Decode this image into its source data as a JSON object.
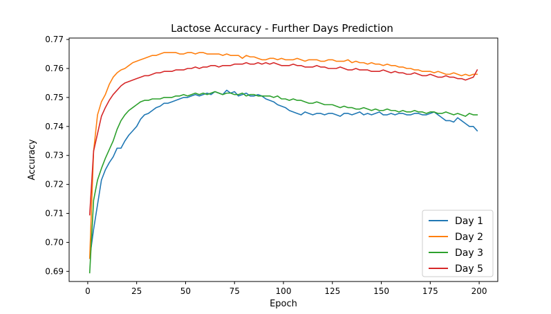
{
  "chart_data": {
    "type": "line",
    "title": "Lactose Accuracy - Further Days Prediction",
    "xlabel": "Epoch",
    "ylabel": "Accuracy",
    "xlim": [
      -9.5,
      209.5
    ],
    "ylim": [
      0.6865,
      0.7705
    ],
    "xticks": [
      0,
      25,
      50,
      75,
      100,
      125,
      150,
      175,
      200
    ],
    "yticks": [
      0.69,
      0.7,
      0.71,
      0.72,
      0.73,
      0.74,
      0.75,
      0.76,
      0.77
    ],
    "ytick_labels": [
      "0.69",
      "0.70",
      "0.71",
      "0.72",
      "0.73",
      "0.74",
      "0.75",
      "0.76",
      "0.77"
    ],
    "grid": false,
    "legend_position": "lower-right",
    "x_start": 1,
    "x_step": 2,
    "series": [
      {
        "name": "Day 1",
        "color": "#1f77b4",
        "values": [
          0.6945,
          0.7045,
          0.713,
          0.7215,
          0.725,
          0.7275,
          0.7295,
          0.7325,
          0.7325,
          0.735,
          0.737,
          0.7385,
          0.74,
          0.7425,
          0.744,
          0.7445,
          0.7455,
          0.7465,
          0.747,
          0.748,
          0.748,
          0.7485,
          0.749,
          0.7495,
          0.75,
          0.75,
          0.7505,
          0.751,
          0.7505,
          0.751,
          0.7515,
          0.751,
          0.752,
          0.7515,
          0.751,
          0.7525,
          0.7515,
          0.752,
          0.7505,
          0.751,
          0.7515,
          0.7505,
          0.7505,
          0.751,
          0.7505,
          0.7495,
          0.749,
          0.7485,
          0.7475,
          0.747,
          0.7465,
          0.7455,
          0.745,
          0.7445,
          0.744,
          0.745,
          0.7445,
          0.744,
          0.7445,
          0.7445,
          0.744,
          0.7445,
          0.7445,
          0.744,
          0.7435,
          0.7445,
          0.7445,
          0.744,
          0.7445,
          0.745,
          0.744,
          0.7445,
          0.744,
          0.7445,
          0.745,
          0.744,
          0.744,
          0.7445,
          0.744,
          0.7445,
          0.7445,
          0.744,
          0.744,
          0.7445,
          0.7445,
          0.744,
          0.744,
          0.7445,
          0.745,
          0.744,
          0.743,
          0.742,
          0.742,
          0.7415,
          0.743,
          0.742,
          0.741,
          0.74,
          0.74,
          0.7385
        ]
      },
      {
        "name": "Day 2",
        "color": "#ff7f0e",
        "values": [
          0.6945,
          0.7315,
          0.744,
          0.7485,
          0.751,
          0.7545,
          0.757,
          0.7585,
          0.7595,
          0.76,
          0.761,
          0.762,
          0.7625,
          0.763,
          0.7635,
          0.764,
          0.7645,
          0.7645,
          0.765,
          0.7655,
          0.7655,
          0.7655,
          0.7655,
          0.765,
          0.765,
          0.7655,
          0.7655,
          0.765,
          0.7655,
          0.7655,
          0.765,
          0.765,
          0.765,
          0.765,
          0.7645,
          0.765,
          0.7645,
          0.7645,
          0.7645,
          0.7635,
          0.7645,
          0.764,
          0.764,
          0.7635,
          0.763,
          0.763,
          0.7635,
          0.7635,
          0.763,
          0.7635,
          0.763,
          0.763,
          0.763,
          0.7635,
          0.763,
          0.7625,
          0.763,
          0.763,
          0.763,
          0.7625,
          0.7625,
          0.763,
          0.763,
          0.7625,
          0.7625,
          0.7625,
          0.763,
          0.762,
          0.7625,
          0.762,
          0.762,
          0.7615,
          0.762,
          0.7615,
          0.7615,
          0.761,
          0.7615,
          0.761,
          0.761,
          0.7605,
          0.7605,
          0.76,
          0.76,
          0.7595,
          0.7595,
          0.759,
          0.759,
          0.759,
          0.7585,
          0.759,
          0.7585,
          0.758,
          0.758,
          0.7585,
          0.758,
          0.7575,
          0.758,
          0.7575,
          0.758,
          0.758
        ]
      },
      {
        "name": "Day 3",
        "color": "#2ca02c",
        "values": [
          0.6895,
          0.7145,
          0.7215,
          0.7255,
          0.729,
          0.732,
          0.735,
          0.739,
          0.742,
          0.744,
          0.7455,
          0.7465,
          0.7475,
          0.7485,
          0.749,
          0.749,
          0.7495,
          0.7495,
          0.7495,
          0.75,
          0.75,
          0.75,
          0.7505,
          0.7505,
          0.751,
          0.7505,
          0.751,
          0.7515,
          0.751,
          0.7515,
          0.751,
          0.7515,
          0.752,
          0.7515,
          0.751,
          0.7515,
          0.7515,
          0.751,
          0.751,
          0.7515,
          0.7505,
          0.751,
          0.751,
          0.7505,
          0.7505,
          0.7505,
          0.7505,
          0.75,
          0.7505,
          0.7495,
          0.7495,
          0.749,
          0.7495,
          0.749,
          0.749,
          0.7485,
          0.748,
          0.748,
          0.7485,
          0.748,
          0.7475,
          0.7475,
          0.7475,
          0.747,
          0.7465,
          0.747,
          0.7465,
          0.7465,
          0.746,
          0.746,
          0.7465,
          0.746,
          0.7455,
          0.746,
          0.7455,
          0.7455,
          0.746,
          0.7455,
          0.7455,
          0.745,
          0.7455,
          0.745,
          0.745,
          0.7455,
          0.745,
          0.745,
          0.7445,
          0.745,
          0.745,
          0.7445,
          0.7445,
          0.745,
          0.7445,
          0.744,
          0.7445,
          0.744,
          0.7435,
          0.7445,
          0.744,
          0.744
        ]
      },
      {
        "name": "Day 5",
        "color": "#d62728",
        "values": [
          0.7095,
          0.7315,
          0.7375,
          0.7435,
          0.7465,
          0.749,
          0.751,
          0.7525,
          0.754,
          0.755,
          0.7555,
          0.756,
          0.7565,
          0.757,
          0.7575,
          0.7575,
          0.758,
          0.7585,
          0.7585,
          0.759,
          0.759,
          0.759,
          0.7595,
          0.7595,
          0.7595,
          0.76,
          0.76,
          0.7605,
          0.76,
          0.7605,
          0.7605,
          0.761,
          0.761,
          0.7605,
          0.761,
          0.761,
          0.761,
          0.7615,
          0.7615,
          0.7615,
          0.762,
          0.7615,
          0.7615,
          0.762,
          0.7615,
          0.762,
          0.7615,
          0.762,
          0.7615,
          0.761,
          0.761,
          0.761,
          0.7615,
          0.761,
          0.761,
          0.7605,
          0.7605,
          0.7605,
          0.761,
          0.7605,
          0.7605,
          0.76,
          0.76,
          0.76,
          0.7605,
          0.76,
          0.7595,
          0.7595,
          0.76,
          0.7595,
          0.7595,
          0.7595,
          0.759,
          0.759,
          0.759,
          0.7595,
          0.759,
          0.7585,
          0.759,
          0.7585,
          0.7585,
          0.758,
          0.758,
          0.7585,
          0.758,
          0.7575,
          0.7575,
          0.758,
          0.7575,
          0.757,
          0.757,
          0.7575,
          0.757,
          0.757,
          0.7565,
          0.7565,
          0.756,
          0.7565,
          0.757,
          0.7595
        ]
      }
    ]
  }
}
